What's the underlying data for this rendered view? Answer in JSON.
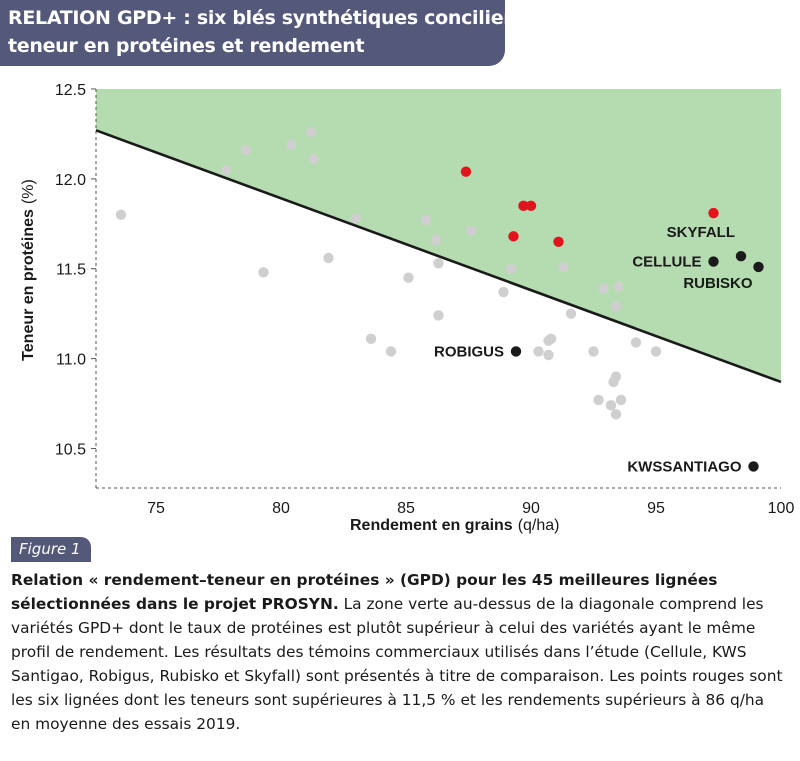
{
  "header": {
    "title_line1": "RELATION GPD+ : six blés synthétiques concilient",
    "title_line2": "teneur en protéines et rendement"
  },
  "figure_label": "Figure 1",
  "caption": {
    "bold": "Relation « rendement–teneur en protéines » (GPD) pour les 45 meilleures lignées sélectionnées dans le projet PROSYN.",
    "text": " La zone verte au-dessus de la diagonale comprend les variétés GPD+ dont le taux de protéines est plutôt supérieur à celui des variétés ayant le même profil de rendement. Les résultats des témoins commerciaux utilisés dans l’étude (Cellule, KWS Santigao, Robigus, Rubisko et Skyfall) sont présentés à titre de comparaison. Les points rouges sont les six lignées dont les teneurs sont supérieures à 11,5 % et les rendements supérieurs à 86 q/ha en moyenne des essais 2019."
  },
  "colors": {
    "header_bg": "#545879",
    "zone_fill": "#b5dbb0",
    "grey_point": "#cfcfcf",
    "red_point": "#e1141d",
    "black_point": "#1a1a1a",
    "line": "#1a1a1a"
  },
  "chart_data": {
    "type": "scatter",
    "title": "",
    "xlabel": "Rendement en grains",
    "xunit": "(q/ha)",
    "ylabel": "Teneur en protéines",
    "yunit": "(%)",
    "xlim": [
      72.6,
      100
    ],
    "ylim": [
      10.28,
      12.5
    ],
    "xticks": [
      75,
      80,
      85,
      90,
      95,
      100
    ],
    "yticks": [
      10.5,
      11.0,
      11.5,
      12.0,
      12.5
    ],
    "xtick_labels": [
      "75",
      "80",
      "85",
      "90",
      "95",
      "100"
    ],
    "ytick_labels": [
      "10.5",
      "11.0",
      "11.5",
      "12.0",
      "12.5"
    ],
    "diagonal": {
      "x": [
        72.6,
        100
      ],
      "y": [
        12.27,
        10.87
      ]
    },
    "grid": false,
    "legend": "none",
    "series": [
      {
        "group": "grey",
        "x": [
          73.6,
          77.8,
          78.6,
          79.3,
          80.4,
          81.2,
          81.3,
          81.9,
          83.0,
          83.6,
          84.4,
          85.1,
          85.8,
          86.2,
          86.3,
          86.3,
          87.6,
          88.9,
          89.2,
          90.3,
          90.7,
          90.7,
          90.8,
          91.3,
          91.6,
          92.5,
          92.7,
          92.9,
          93.2,
          93.3,
          93.4,
          93.4,
          93.4,
          93.5,
          93.6,
          94.2,
          95.0
        ],
        "y": [
          11.8,
          12.05,
          12.16,
          11.48,
          12.19,
          12.26,
          12.11,
          11.56,
          11.78,
          11.11,
          11.04,
          11.45,
          11.77,
          11.66,
          11.53,
          11.24,
          11.71,
          11.37,
          11.5,
          11.04,
          11.1,
          11.02,
          11.11,
          11.51,
          11.25,
          11.04,
          10.77,
          11.39,
          10.74,
          10.87,
          10.69,
          10.9,
          11.29,
          11.4,
          10.77,
          11.09,
          11.04
        ]
      },
      {
        "group": "red",
        "x": [
          87.4,
          89.3,
          89.7,
          90.0,
          91.1,
          97.3
        ],
        "y": [
          12.04,
          11.68,
          11.85,
          11.85,
          11.65,
          11.81
        ]
      },
      {
        "group": "controls",
        "x": [
          89.4,
          97.3,
          98.4,
          99.1,
          98.9
        ],
        "y": [
          11.04,
          11.54,
          11.57,
          11.51,
          10.4
        ],
        "labels": [
          "ROBIGUS",
          "CELLULE",
          "SKYFALL",
          "RUBISKO",
          "KWSSANTIAGO"
        ]
      }
    ]
  }
}
